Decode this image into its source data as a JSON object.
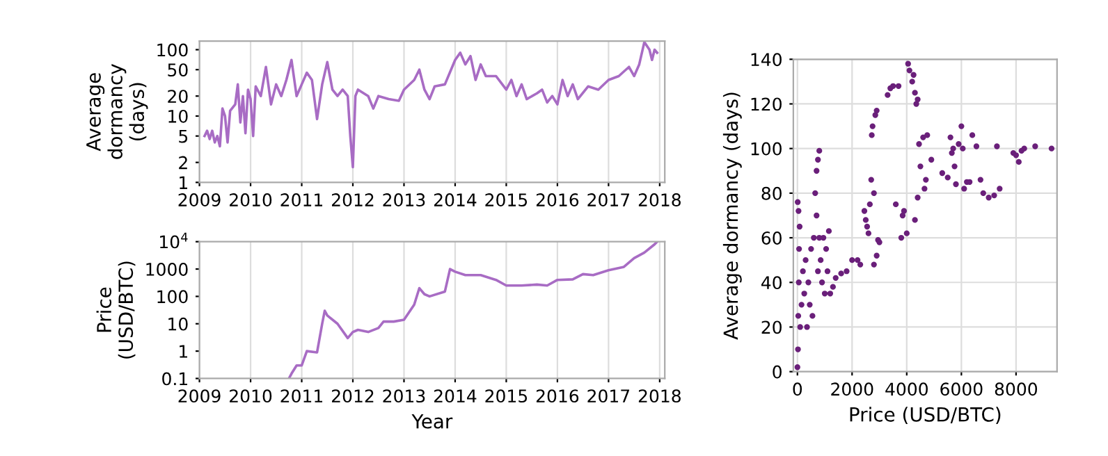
{
  "chart_data": [
    {
      "type": "line",
      "ylabel": "Average\ndormancy\n(days)",
      "log": "y",
      "grid": "x",
      "marker": "none",
      "line_style": "solid",
      "xlim": [
        2009,
        2018.1
      ],
      "xticks": [
        2009,
        2010,
        2011,
        2012,
        2013,
        2014,
        2015,
        2016,
        2017,
        2018
      ],
      "ylim": [
        1,
        135
      ],
      "yticks": [
        1,
        2,
        5,
        10,
        20,
        50,
        100
      ],
      "series": [
        {
          "color": "#a86cc4",
          "x": [
            2009.1,
            2009.15,
            2009.2,
            2009.25,
            2009.3,
            2009.35,
            2009.4,
            2009.45,
            2009.5,
            2009.55,
            2009.6,
            2009.7,
            2009.75,
            2009.8,
            2009.85,
            2009.9,
            2009.95,
            2010.0,
            2010.05,
            2010.1,
            2010.2,
            2010.3,
            2010.4,
            2010.5,
            2010.6,
            2010.7,
            2010.8,
            2010.9,
            2011.0,
            2011.1,
            2011.2,
            2011.3,
            2011.4,
            2011.5,
            2011.6,
            2011.7,
            2011.8,
            2011.9,
            2011.95,
            2012.0,
            2012.05,
            2012.1,
            2012.3,
            2012.4,
            2012.5,
            2012.7,
            2012.9,
            2013.0,
            2013.2,
            2013.3,
            2013.4,
            2013.5,
            2013.6,
            2013.8,
            2014.0,
            2014.1,
            2014.2,
            2014.3,
            2014.4,
            2014.5,
            2014.6,
            2014.8,
            2015.0,
            2015.1,
            2015.2,
            2015.3,
            2015.4,
            2015.6,
            2015.7,
            2015.8,
            2015.9,
            2016.0,
            2016.1,
            2016.2,
            2016.3,
            2016.4,
            2016.6,
            2016.8,
            2017.0,
            2017.2,
            2017.4,
            2017.5,
            2017.6,
            2017.7,
            2017.8,
            2017.85,
            2017.9,
            2017.95
          ],
          "values": [
            5,
            6,
            4.5,
            6,
            4,
            5,
            3.5,
            13,
            10,
            4,
            12,
            15,
            30,
            8,
            20,
            5.5,
            25,
            18,
            5,
            28,
            20,
            55,
            15,
            30,
            20,
            35,
            70,
            20,
            30,
            45,
            35,
            9,
            30,
            65,
            25,
            20,
            25,
            20,
            5,
            1.7,
            20,
            25,
            20,
            13,
            20,
            18,
            17,
            25,
            35,
            50,
            25,
            18,
            28,
            30,
            70,
            90,
            60,
            80,
            35,
            60,
            40,
            40,
            25,
            35,
            20,
            30,
            18,
            22,
            25,
            16,
            20,
            15,
            35,
            20,
            30,
            18,
            28,
            25,
            35,
            40,
            55,
            40,
            60,
            130,
            100,
            70,
            100,
            90
          ]
        }
      ]
    },
    {
      "type": "line",
      "xlabel": "Year",
      "ylabel": "Price\n(USD/BTC)",
      "log": "y",
      "grid": "x",
      "marker": "none",
      "line_style": "solid",
      "xlim": [
        2009,
        2018.1
      ],
      "xticks": [
        2009,
        2010,
        2011,
        2012,
        2013,
        2014,
        2015,
        2016,
        2017,
        2018
      ],
      "ylim": [
        0.1,
        10000
      ],
      "yticks": [
        0.1,
        1,
        10,
        100,
        1000,
        {
          "value": 10000,
          "label": "10$^{4}$"
        }
      ],
      "series": [
        {
          "color": "#a86cc4",
          "x": [
            2010.75,
            2010.8,
            2010.9,
            2011.0,
            2011.1,
            2011.3,
            2011.4,
            2011.45,
            2011.5,
            2011.7,
            2011.9,
            2012.0,
            2012.1,
            2012.3,
            2012.5,
            2012.6,
            2012.8,
            2013.0,
            2013.2,
            2013.3,
            2013.4,
            2013.5,
            2013.8,
            2013.9,
            2014.0,
            2014.2,
            2014.4,
            2014.5,
            2014.8,
            2015.0,
            2015.3,
            2015.6,
            2015.8,
            2016.0,
            2016.3,
            2016.5,
            2016.7,
            2017.0,
            2017.3,
            2017.5,
            2017.7,
            2017.9,
            2017.95
          ],
          "values": [
            0.1,
            0.15,
            0.3,
            0.3,
            1,
            0.9,
            10,
            30,
            20,
            10,
            3,
            5,
            6,
            5,
            7,
            12,
            12,
            14,
            50,
            200,
            120,
            100,
            150,
            1000,
            800,
            600,
            600,
            600,
            400,
            250,
            250,
            270,
            250,
            400,
            420,
            650,
            600,
            900,
            1200,
            2500,
            4000,
            8000,
            10000
          ]
        }
      ]
    },
    {
      "type": "scatter",
      "xlabel": "Price (USD/BTC)",
      "ylabel": "Average dormancy (days)",
      "grid": true,
      "marker": "circle",
      "xlim": [
        -150,
        9500
      ],
      "xticks": [
        0,
        2000,
        4000,
        6000,
        8000
      ],
      "ylim": [
        0,
        140
      ],
      "yticks": [
        0,
        20,
        40,
        60,
        80,
        100,
        120,
        140
      ],
      "series": [
        {
          "color": "#6a1f7a",
          "x": [
            0,
            20,
            30,
            50,
            60,
            80,
            10,
            40,
            100,
            150,
            200,
            250,
            300,
            350,
            400,
            450,
            500,
            550,
            600,
            650,
            700,
            750,
            800,
            700,
            750,
            800,
            850,
            900,
            950,
            1000,
            1050,
            1100,
            1150,
            1200,
            1300,
            1400,
            1600,
            1800,
            2000,
            2200,
            2300,
            2450,
            2500,
            2550,
            2600,
            2650,
            2700,
            2720,
            2750,
            2800,
            2850,
            2900,
            2800,
            2900,
            2950,
            3000,
            3300,
            3400,
            3500,
            3600,
            3700,
            3800,
            3850,
            3900,
            4000,
            4050,
            4100,
            4200,
            4250,
            4300,
            4350,
            4400,
            4300,
            4400,
            4450,
            4500,
            4600,
            4700,
            4750,
            4650,
            4900,
            5300,
            5500,
            5600,
            5650,
            5700,
            5750,
            5800,
            5900,
            6000,
            6050,
            6100,
            6200,
            6300,
            6400,
            6550,
            6700,
            6800,
            7000,
            7200,
            7300,
            7400,
            7900,
            8000,
            8100,
            8200,
            8300,
            8700,
            9300
          ],
          "values": [
            2,
            10,
            25,
            40,
            55,
            65,
            76,
            72,
            20,
            30,
            45,
            35,
            50,
            20,
            40,
            30,
            55,
            25,
            60,
            80,
            90,
            95,
            99,
            70,
            45,
            60,
            50,
            40,
            60,
            35,
            55,
            45,
            63,
            35,
            38,
            42,
            44,
            45,
            50,
            50,
            48,
            72,
            68,
            65,
            62,
            75,
            86,
            106,
            110,
            80,
            115,
            117,
            48,
            52,
            59,
            58,
            124,
            127,
            128,
            75,
            128,
            60,
            70,
            72,
            62,
            138,
            135,
            130,
            133,
            125,
            120,
            122,
            68,
            78,
            102,
            92,
            105,
            86,
            106,
            82,
            95,
            89,
            87,
            105,
            98,
            100,
            92,
            84,
            102,
            110,
            100,
            82,
            85,
            85,
            106,
            101,
            86,
            80,
            78,
            79,
            101,
            82,
            98,
            97,
            94,
            99,
            100,
            101,
            100
          ]
        }
      ]
    }
  ]
}
